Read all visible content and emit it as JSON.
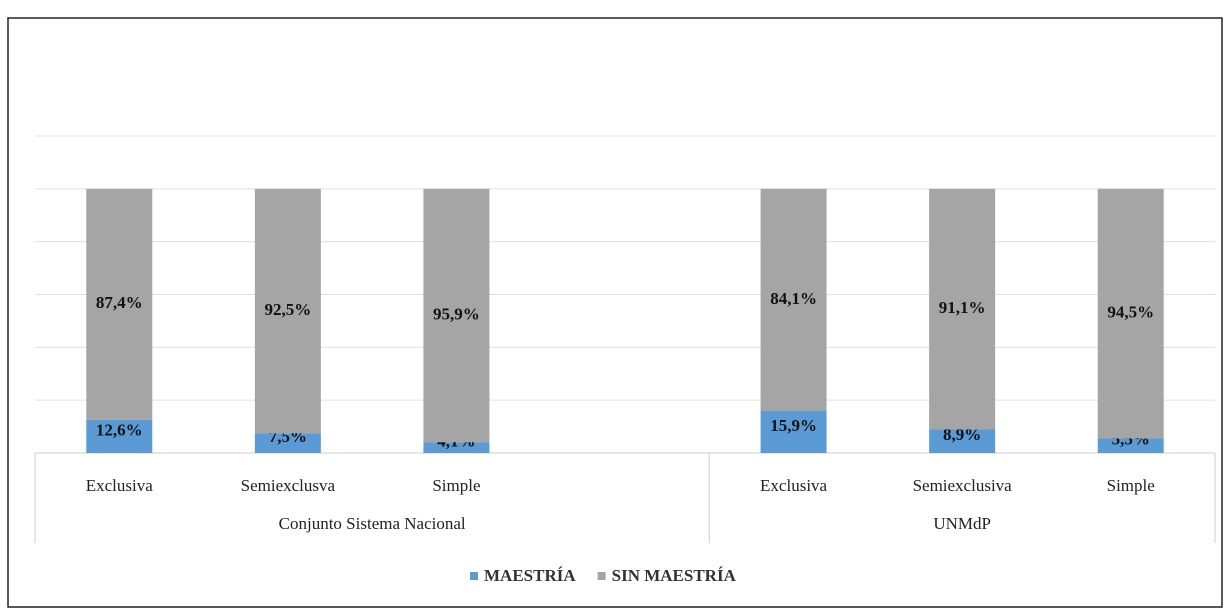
{
  "chart_data": {
    "type": "stacked_bar",
    "groups": [
      {
        "name": "Conjunto Sistema Nacional",
        "categories": [
          "Exclusiva",
          "Semiexclusva",
          "Simple",
          null
        ]
      },
      {
        "name": "UNMdP",
        "categories": [
          "Exclusiva",
          "Semiexclusiva",
          "Simple"
        ]
      }
    ],
    "series": [
      {
        "name": "MAESTRÍA",
        "color": "#5b9bd5",
        "values": [
          12.6,
          7.5,
          4.1,
          null,
          15.9,
          8.9,
          5.5
        ],
        "value_labels": [
          "12,6%",
          "7,5%",
          "4,1%",
          null,
          "15,9%",
          "8,9%",
          "5,5%"
        ]
      },
      {
        "name": "SIN MAESTRÍA",
        "color": "#a5a5a5",
        "values": [
          87.4,
          92.5,
          95.9,
          null,
          84.1,
          91.1,
          94.5
        ],
        "value_labels": [
          "87,4%",
          "92,5%",
          "95,9%",
          null,
          "84,1%",
          "91,1%",
          "94,5%"
        ]
      }
    ],
    "ylim": [
      0,
      120
    ],
    "yticks": [
      0,
      20,
      40,
      60,
      80,
      100,
      120
    ],
    "grid": true,
    "legend": "bottom"
  }
}
